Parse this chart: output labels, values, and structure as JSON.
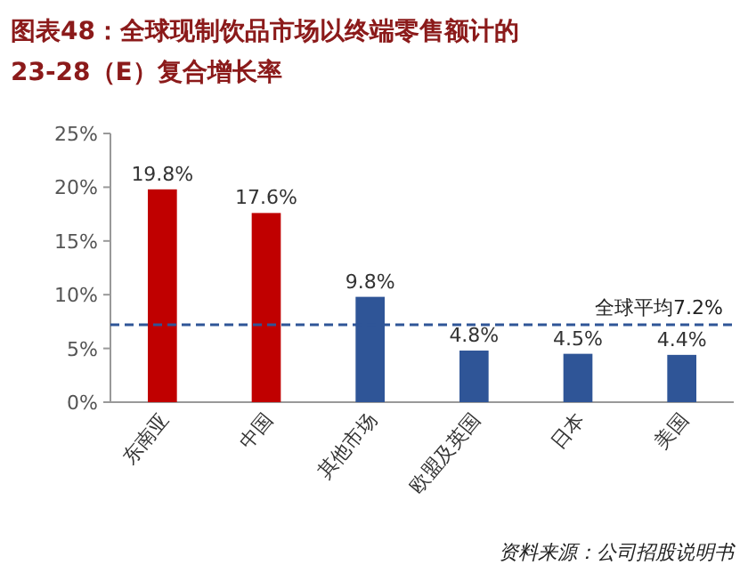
{
  "chart_data": {
    "type": "bar",
    "title": "图表48：全球现制饮品市场以终端零售额计的 23-28（E）复合增长率",
    "categories": [
      "东南亚",
      "中国",
      "其他市场",
      "欧盟及英国",
      "日本",
      "美国"
    ],
    "values": [
      19.8,
      17.6,
      9.8,
      4.8,
      4.5,
      4.4
    ],
    "colors": [
      "#c00000",
      "#c00000",
      "#2f5597",
      "#2f5597",
      "#2f5597",
      "#2f5597"
    ],
    "value_labels": [
      "19.8%",
      "17.6%",
      "9.8%",
      "4.8%",
      "4.5%",
      "4.4%"
    ],
    "ylim": [
      0,
      25
    ],
    "yticks": [
      {
        "value": 0,
        "label": "0%"
      },
      {
        "value": 5,
        "label": "5%"
      },
      {
        "value": 10,
        "label": "10%"
      },
      {
        "value": 15,
        "label": "15%"
      },
      {
        "value": 20,
        "label": "20%"
      },
      {
        "value": 25,
        "label": "25%"
      }
    ],
    "ref_lines": [
      {
        "axis": "y",
        "value": 7.2,
        "label": "全球平均7.2%",
        "color": "#2f5597",
        "line_style": "dashed"
      }
    ],
    "annotations": [
      "资料来源：公司招股说明书"
    ]
  }
}
